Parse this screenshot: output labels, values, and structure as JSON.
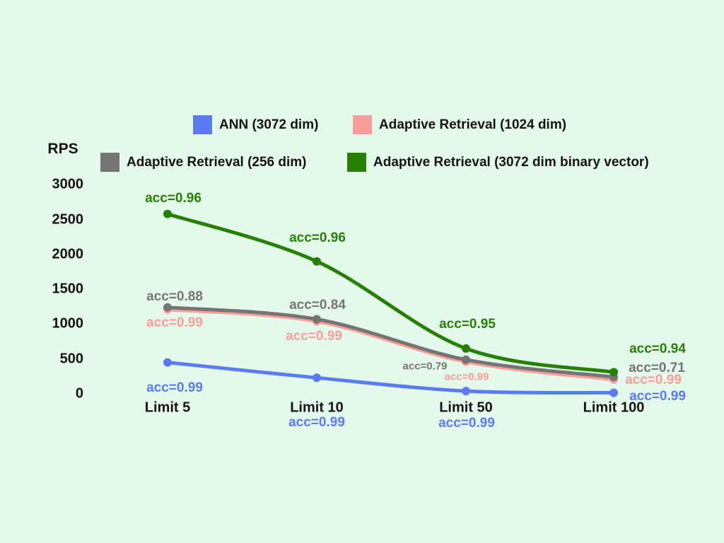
{
  "canvas": {
    "background": "#e4f9ec"
  },
  "y_axis": {
    "title": "RPS",
    "tick_labels": [
      "3000",
      "2500",
      "2000",
      "1500",
      "1000",
      "500",
      "0"
    ]
  },
  "x_axis": {
    "category_labels": [
      "Limit 5",
      "Limit 10",
      "Limit 50",
      "Limit 100"
    ]
  },
  "legend": {
    "items": [
      {
        "label": "ANN (3072 dim)",
        "color": "#5b7bf3"
      },
      {
        "label": "Adaptive Retrieval (1024 dim)",
        "color": "#fb9d99"
      },
      {
        "label": "Adaptive Retrieval (256 dim)",
        "color": "#757575"
      },
      {
        "label": "Adaptive Retrieval (3072 dim binary vector)",
        "color": "#278003"
      }
    ]
  },
  "chart_data": {
    "type": "line",
    "title": "",
    "xlabel": "",
    "ylabel": "RPS",
    "categories": [
      "Limit 5",
      "Limit 10",
      "Limit 50",
      "Limit 100"
    ],
    "ylim": [
      0,
      3000
    ],
    "y_ticks": [
      0,
      500,
      1000,
      1500,
      2000,
      2500,
      3000
    ],
    "grid": false,
    "legend_position": "top",
    "series": [
      {
        "name": "ANN (3072 dim)",
        "color": "#5b7bf3",
        "values": [
          450,
          230,
          40,
          15
        ],
        "accuracy": [
          0.99,
          0.99,
          0.99,
          0.99
        ],
        "point_labels": [
          "acc=0.99",
          "acc=0.99",
          "acc=0.99",
          "acc=0.99"
        ]
      },
      {
        "name": "Adaptive Retrieval (1024 dim)",
        "color": "#fb9d99",
        "values": [
          1210,
          1040,
          460,
          205
        ],
        "accuracy": [
          0.99,
          0.99,
          0.99,
          0.99
        ],
        "point_labels": [
          "acc=0.99",
          "acc=0.99",
          "acc=0.99",
          "acc=0.99"
        ]
      },
      {
        "name": "Adaptive Retrieval (256 dim)",
        "color": "#757575",
        "values": [
          1240,
          1070,
          490,
          240
        ],
        "accuracy": [
          0.88,
          0.84,
          0.79,
          0.71
        ],
        "point_labels": [
          "acc=0.88",
          "acc=0.84",
          "acc=0.79",
          "acc=0.71"
        ]
      },
      {
        "name": "Adaptive Retrieval (3072 dim binary vector)",
        "color": "#278003",
        "values": [
          2580,
          1900,
          650,
          310
        ],
        "accuracy": [
          0.96,
          0.96,
          0.95,
          0.94
        ],
        "point_labels": [
          "acc=0.96",
          "acc=0.96",
          "acc=0.95",
          "acc=0.94"
        ]
      }
    ]
  }
}
